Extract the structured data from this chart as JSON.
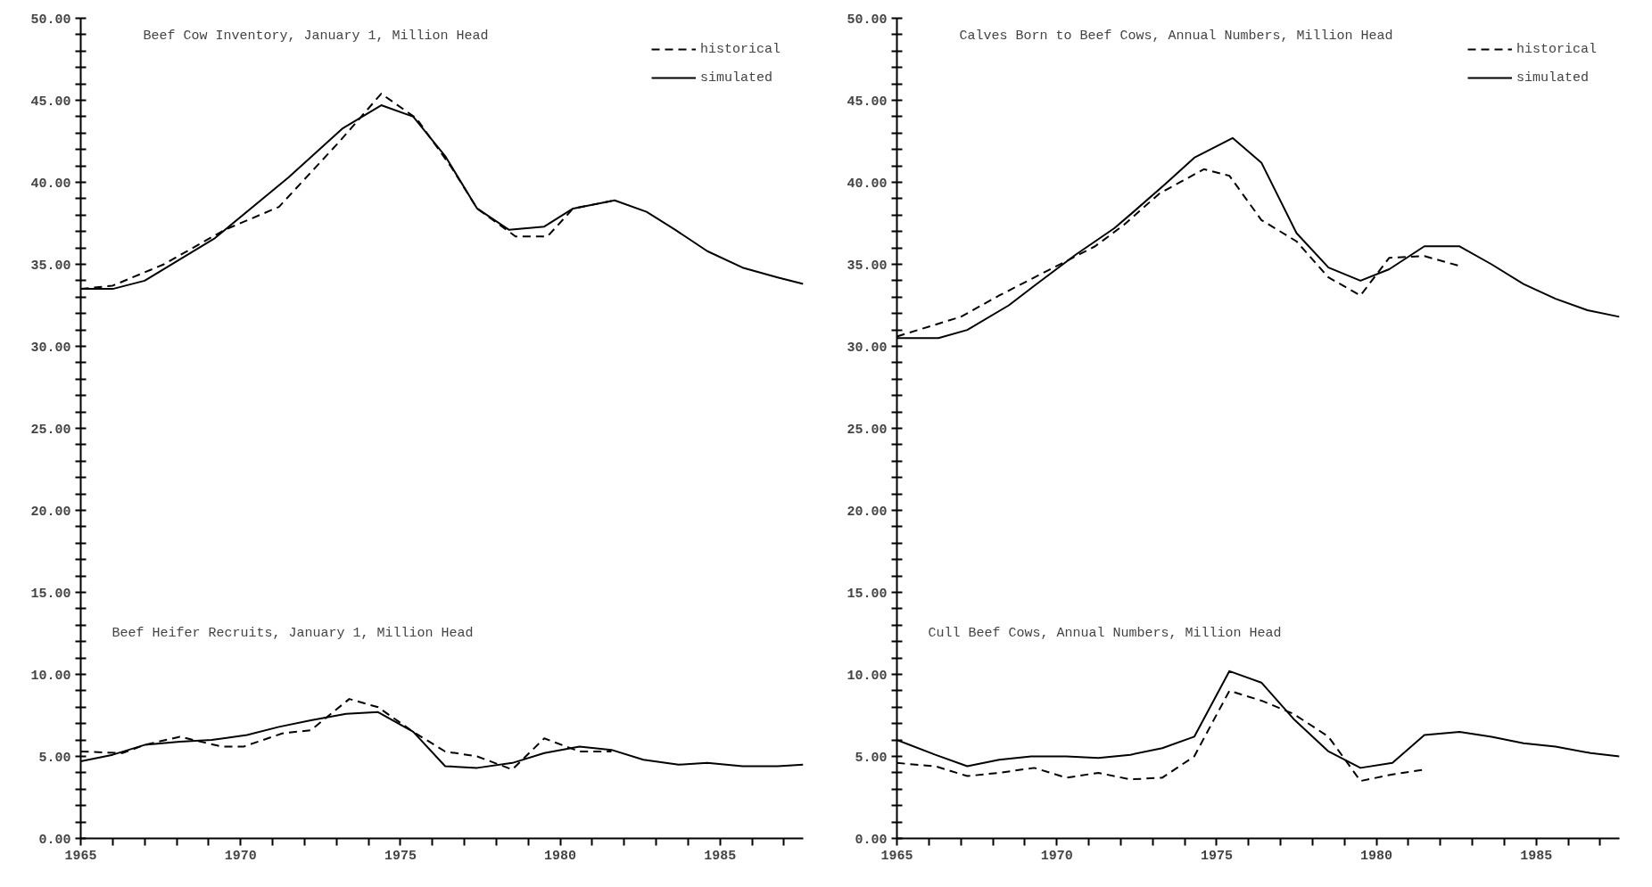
{
  "chart_data": [
    {
      "type": "line",
      "xlim": [
        1965,
        1987.6
      ],
      "ylim": [
        0,
        50
      ],
      "grid": false,
      "legend": "top right",
      "xticks": [
        1965,
        {
          "value": 1966,
          "label": null
        },
        {
          "value": 1967,
          "label": null
        },
        {
          "value": 1968,
          "label": null
        },
        {
          "value": 1969,
          "label": null
        },
        1970,
        {
          "value": 1971,
          "label": null
        },
        {
          "value": 1972,
          "label": null
        },
        {
          "value": 1973,
          "label": null
        },
        {
          "value": 1974,
          "label": null
        },
        1975,
        {
          "value": 1976,
          "label": null
        },
        {
          "value": 1977,
          "label": null
        },
        {
          "value": 1978,
          "label": null
        },
        {
          "value": 1979,
          "label": null
        },
        1980,
        {
          "value": 1981,
          "label": null
        },
        {
          "value": 1982,
          "label": null
        },
        {
          "value": 1983,
          "label": null
        },
        {
          "value": 1984,
          "label": null
        },
        1985,
        {
          "value": 1986,
          "label": null
        },
        {
          "value": 1987,
          "label": null
        }
      ],
      "yticks": [
        {
          "value": 0,
          "label": "0.00"
        },
        {
          "value": 1,
          "label": null
        },
        {
          "value": 2,
          "label": null
        },
        {
          "value": 3,
          "label": null
        },
        {
          "value": 4,
          "label": null
        },
        {
          "value": 5,
          "label": "5.00"
        },
        {
          "value": 6,
          "label": null
        },
        {
          "value": 7,
          "label": null
        },
        {
          "value": 8,
          "label": null
        },
        {
          "value": 9,
          "label": null
        },
        {
          "value": 10,
          "label": "10.00"
        },
        {
          "value": 11,
          "label": null
        },
        {
          "value": 12,
          "label": null
        },
        {
          "value": 13,
          "label": null
        },
        {
          "value": 14,
          "label": null
        },
        {
          "value": 15,
          "label": "15.00"
        },
        {
          "value": 16,
          "label": null
        },
        {
          "value": 17,
          "label": null
        },
        {
          "value": 18,
          "label": null
        },
        {
          "value": 19,
          "label": null
        },
        {
          "value": 20,
          "label": "20.00"
        },
        {
          "value": 21,
          "label": null
        },
        {
          "value": 22,
          "label": null
        },
        {
          "value": 23,
          "label": null
        },
        {
          "value": 24,
          "label": null
        },
        {
          "value": 25,
          "label": "25.00"
        },
        {
          "value": 26,
          "label": null
        },
        {
          "value": 27,
          "label": null
        },
        {
          "value": 28,
          "label": null
        },
        {
          "value": 29,
          "label": null
        },
        {
          "value": 30,
          "label": "30.00"
        },
        {
          "value": 31,
          "label": null
        },
        {
          "value": 32,
          "label": null
        },
        {
          "value": 33,
          "label": null
        },
        {
          "value": 34,
          "label": null
        },
        {
          "value": 35,
          "label": "35.00"
        },
        {
          "value": 36,
          "label": null
        },
        {
          "value": 37,
          "label": null
        },
        {
          "value": 38,
          "label": null
        },
        {
          "value": 39,
          "label": null
        },
        {
          "value": 40,
          "label": "40.00"
        },
        {
          "value": 41,
          "label": null
        },
        {
          "value": 42,
          "label": null
        },
        {
          "value": 43,
          "label": null
        },
        {
          "value": 44,
          "label": null
        },
        {
          "value": 45,
          "label": "45.00"
        },
        {
          "value": 46,
          "label": null
        },
        {
          "value": 47,
          "label": null
        },
        {
          "value": 48,
          "label": null
        },
        {
          "value": 49,
          "label": null
        },
        {
          "value": 50,
          "label": "50.00"
        }
      ],
      "annotations": [
        "Beef Cow Inventory, January 1, Million Head",
        "Beef Heifer Recruits, January 1, Million Head"
      ],
      "series": [
        {
          "name": "historical",
          "color": "#000000",
          "line_style": "dashed",
          "x": [
            1965.0,
            1966.0,
            1967.6,
            1969.5,
            1971.2,
            1973.1,
            1974.4,
            1975.5,
            1976.6,
            1977.4,
            1978.6,
            1979.6,
            1980.4,
            1981.7
          ],
          "values": [
            33.5,
            33.7,
            35.0,
            37.1,
            38.5,
            42.5,
            45.4,
            43.9,
            40.9,
            38.4,
            36.7,
            36.7,
            38.4,
            38.9
          ]
        },
        {
          "name": "simulated",
          "color": "#000000",
          "line_style": "solid",
          "x": [
            1965.0,
            1966.0,
            1967.0,
            1969.2,
            1971.5,
            1973.2,
            1974.4,
            1975.4,
            1976.4,
            1977.4,
            1978.4,
            1979.5,
            1980.4,
            1981.7,
            1982.7,
            1983.6,
            1984.6,
            1985.7,
            1986.8,
            1987.6
          ],
          "values": [
            33.5,
            33.5,
            34.0,
            36.6,
            40.3,
            43.3,
            44.7,
            44.0,
            41.6,
            38.4,
            37.1,
            37.3,
            38.4,
            38.9,
            38.2,
            37.1,
            35.8,
            34.8,
            34.2,
            33.8
          ]
        },
        {
          "color": "#000000",
          "line_style": "dashed",
          "x": [
            1965.0,
            1966.3,
            1967.0,
            1968.1,
            1969.4,
            1970.1,
            1971.3,
            1972.2,
            1973.4,
            1974.3,
            1975.4,
            1976.4,
            1977.4,
            1978.5,
            1979.5,
            1980.6,
            1981.6
          ],
          "values": [
            5.3,
            5.2,
            5.7,
            6.2,
            5.6,
            5.6,
            6.4,
            6.6,
            8.5,
            8.0,
            6.5,
            5.3,
            5.0,
            4.2,
            6.1,
            5.3,
            5.3
          ]
        },
        {
          "color": "#000000",
          "line_style": "solid",
          "x": [
            1965.0,
            1966.0,
            1967.0,
            1968.1,
            1969.1,
            1970.2,
            1971.2,
            1972.2,
            1973.3,
            1974.3,
            1975.4,
            1976.4,
            1977.4,
            1978.5,
            1979.5,
            1980.6,
            1981.6,
            1982.6,
            1983.7,
            1984.6,
            1985.7,
            1986.8,
            1987.6
          ],
          "values": [
            4.7,
            5.1,
            5.7,
            5.9,
            6.0,
            6.3,
            6.8,
            7.2,
            7.6,
            7.7,
            6.5,
            4.4,
            4.3,
            4.6,
            5.2,
            5.6,
            5.4,
            4.8,
            4.5,
            4.6,
            4.4,
            4.4,
            4.5
          ]
        }
      ]
    },
    {
      "type": "line",
      "xlim": [
        1965,
        1987.6
      ],
      "ylim": [
        0,
        50
      ],
      "grid": false,
      "legend": "top right",
      "xticks": [
        1965,
        {
          "value": 1966,
          "label": null
        },
        {
          "value": 1967,
          "label": null
        },
        {
          "value": 1968,
          "label": null
        },
        {
          "value": 1969,
          "label": null
        },
        1970,
        {
          "value": 1971,
          "label": null
        },
        {
          "value": 1972,
          "label": null
        },
        {
          "value": 1973,
          "label": null
        },
        {
          "value": 1974,
          "label": null
        },
        1975,
        {
          "value": 1976,
          "label": null
        },
        {
          "value": 1977,
          "label": null
        },
        {
          "value": 1978,
          "label": null
        },
        {
          "value": 1979,
          "label": null
        },
        1980,
        {
          "value": 1981,
          "label": null
        },
        {
          "value": 1982,
          "label": null
        },
        {
          "value": 1983,
          "label": null
        },
        {
          "value": 1984,
          "label": null
        },
        1985,
        {
          "value": 1986,
          "label": null
        },
        {
          "value": 1987,
          "label": null
        }
      ],
      "yticks": [
        {
          "value": 0,
          "label": "0.00"
        },
        {
          "value": 1,
          "label": null
        },
        {
          "value": 2,
          "label": null
        },
        {
          "value": 3,
          "label": null
        },
        {
          "value": 4,
          "label": null
        },
        {
          "value": 5,
          "label": "5.00"
        },
        {
          "value": 6,
          "label": null
        },
        {
          "value": 7,
          "label": null
        },
        {
          "value": 8,
          "label": null
        },
        {
          "value": 9,
          "label": null
        },
        {
          "value": 10,
          "label": "10.00"
        },
        {
          "value": 11,
          "label": null
        },
        {
          "value": 12,
          "label": null
        },
        {
          "value": 13,
          "label": null
        },
        {
          "value": 14,
          "label": null
        },
        {
          "value": 15,
          "label": "15.00"
        },
        {
          "value": 16,
          "label": null
        },
        {
          "value": 17,
          "label": null
        },
        {
          "value": 18,
          "label": null
        },
        {
          "value": 19,
          "label": null
        },
        {
          "value": 20,
          "label": "20.00"
        },
        {
          "value": 21,
          "label": null
        },
        {
          "value": 22,
          "label": null
        },
        {
          "value": 23,
          "label": null
        },
        {
          "value": 24,
          "label": null
        },
        {
          "value": 25,
          "label": "25.00"
        },
        {
          "value": 26,
          "label": null
        },
        {
          "value": 27,
          "label": null
        },
        {
          "value": 28,
          "label": null
        },
        {
          "value": 29,
          "label": null
        },
        {
          "value": 30,
          "label": "30.00"
        },
        {
          "value": 31,
          "label": null
        },
        {
          "value": 32,
          "label": null
        },
        {
          "value": 33,
          "label": null
        },
        {
          "value": 34,
          "label": null
        },
        {
          "value": 35,
          "label": "35.00"
        },
        {
          "value": 36,
          "label": null
        },
        {
          "value": 37,
          "label": null
        },
        {
          "value": 38,
          "label": null
        },
        {
          "value": 39,
          "label": null
        },
        {
          "value": 40,
          "label": "40.00"
        },
        {
          "value": 41,
          "label": null
        },
        {
          "value": 42,
          "label": null
        },
        {
          "value": 43,
          "label": null
        },
        {
          "value": 44,
          "label": null
        },
        {
          "value": 45,
          "label": "45.00"
        },
        {
          "value": 46,
          "label": null
        },
        {
          "value": 47,
          "label": null
        },
        {
          "value": 48,
          "label": null
        },
        {
          "value": 49,
          "label": null
        },
        {
          "value": 50,
          "label": "50.00"
        }
      ],
      "annotations": [
        "Calves Born to Beef Cows, Annual Numbers, Million Head",
        "Cull Beef Cows, Annual Numbers, Million Head"
      ],
      "series": [
        {
          "name": "historical",
          "color": "#000000",
          "line_style": "dashed",
          "x": [
            1965.0,
            1967.0,
            1968.2,
            1969.6,
            1971.2,
            1972.1,
            1973.2,
            1974.6,
            1975.4,
            1976.4,
            1977.5,
            1978.5,
            1979.5,
            1980.4,
            1981.5,
            1982.6
          ],
          "values": [
            30.6,
            31.8,
            33.1,
            34.5,
            36.1,
            37.4,
            39.3,
            40.8,
            40.4,
            37.7,
            36.4,
            34.2,
            33.1,
            35.4,
            35.5,
            34.9
          ]
        },
        {
          "name": "simulated",
          "color": "#000000",
          "line_style": "solid",
          "x": [
            1965.0,
            1966.3,
            1967.2,
            1968.5,
            1969.3,
            1970.6,
            1971.8,
            1972.4,
            1973.4,
            1974.3,
            1975.5,
            1976.4,
            1977.5,
            1978.5,
            1979.5,
            1980.4,
            1981.5,
            1982.6,
            1983.6,
            1984.6,
            1985.6,
            1986.6,
            1987.6
          ],
          "values": [
            30.5,
            30.5,
            31.0,
            32.5,
            33.7,
            35.6,
            37.2,
            38.2,
            39.9,
            41.5,
            42.7,
            41.2,
            36.9,
            34.8,
            34.0,
            34.7,
            36.1,
            36.1,
            35.0,
            33.8,
            32.9,
            32.2,
            31.8
          ]
        },
        {
          "color": "#000000",
          "line_style": "dashed",
          "x": [
            1965.0,
            1966.2,
            1967.2,
            1968.2,
            1969.3,
            1970.3,
            1971.3,
            1972.3,
            1973.3,
            1974.3,
            1975.4,
            1976.4,
            1977.4,
            1978.5,
            1979.5,
            1980.5,
            1981.5
          ],
          "values": [
            4.6,
            4.4,
            3.8,
            4.0,
            4.3,
            3.7,
            4.0,
            3.6,
            3.7,
            5.0,
            9.0,
            8.4,
            7.6,
            6.2,
            3.5,
            3.9,
            4.2
          ]
        },
        {
          "color": "#000000",
          "line_style": "solid",
          "x": [
            1965.0,
            1966.2,
            1967.2,
            1968.2,
            1969.2,
            1970.3,
            1971.3,
            1972.3,
            1973.3,
            1974.3,
            1975.4,
            1976.4,
            1977.4,
            1978.5,
            1979.5,
            1980.5,
            1981.5,
            1982.6,
            1983.6,
            1984.6,
            1985.6,
            1986.7,
            1987.6
          ],
          "values": [
            6.0,
            5.1,
            4.4,
            4.8,
            5.0,
            5.0,
            4.9,
            5.1,
            5.5,
            6.2,
            10.2,
            9.5,
            7.3,
            5.3,
            4.3,
            4.6,
            6.3,
            6.5,
            6.2,
            5.8,
            5.6,
            5.2,
            5.0
          ]
        }
      ]
    }
  ]
}
